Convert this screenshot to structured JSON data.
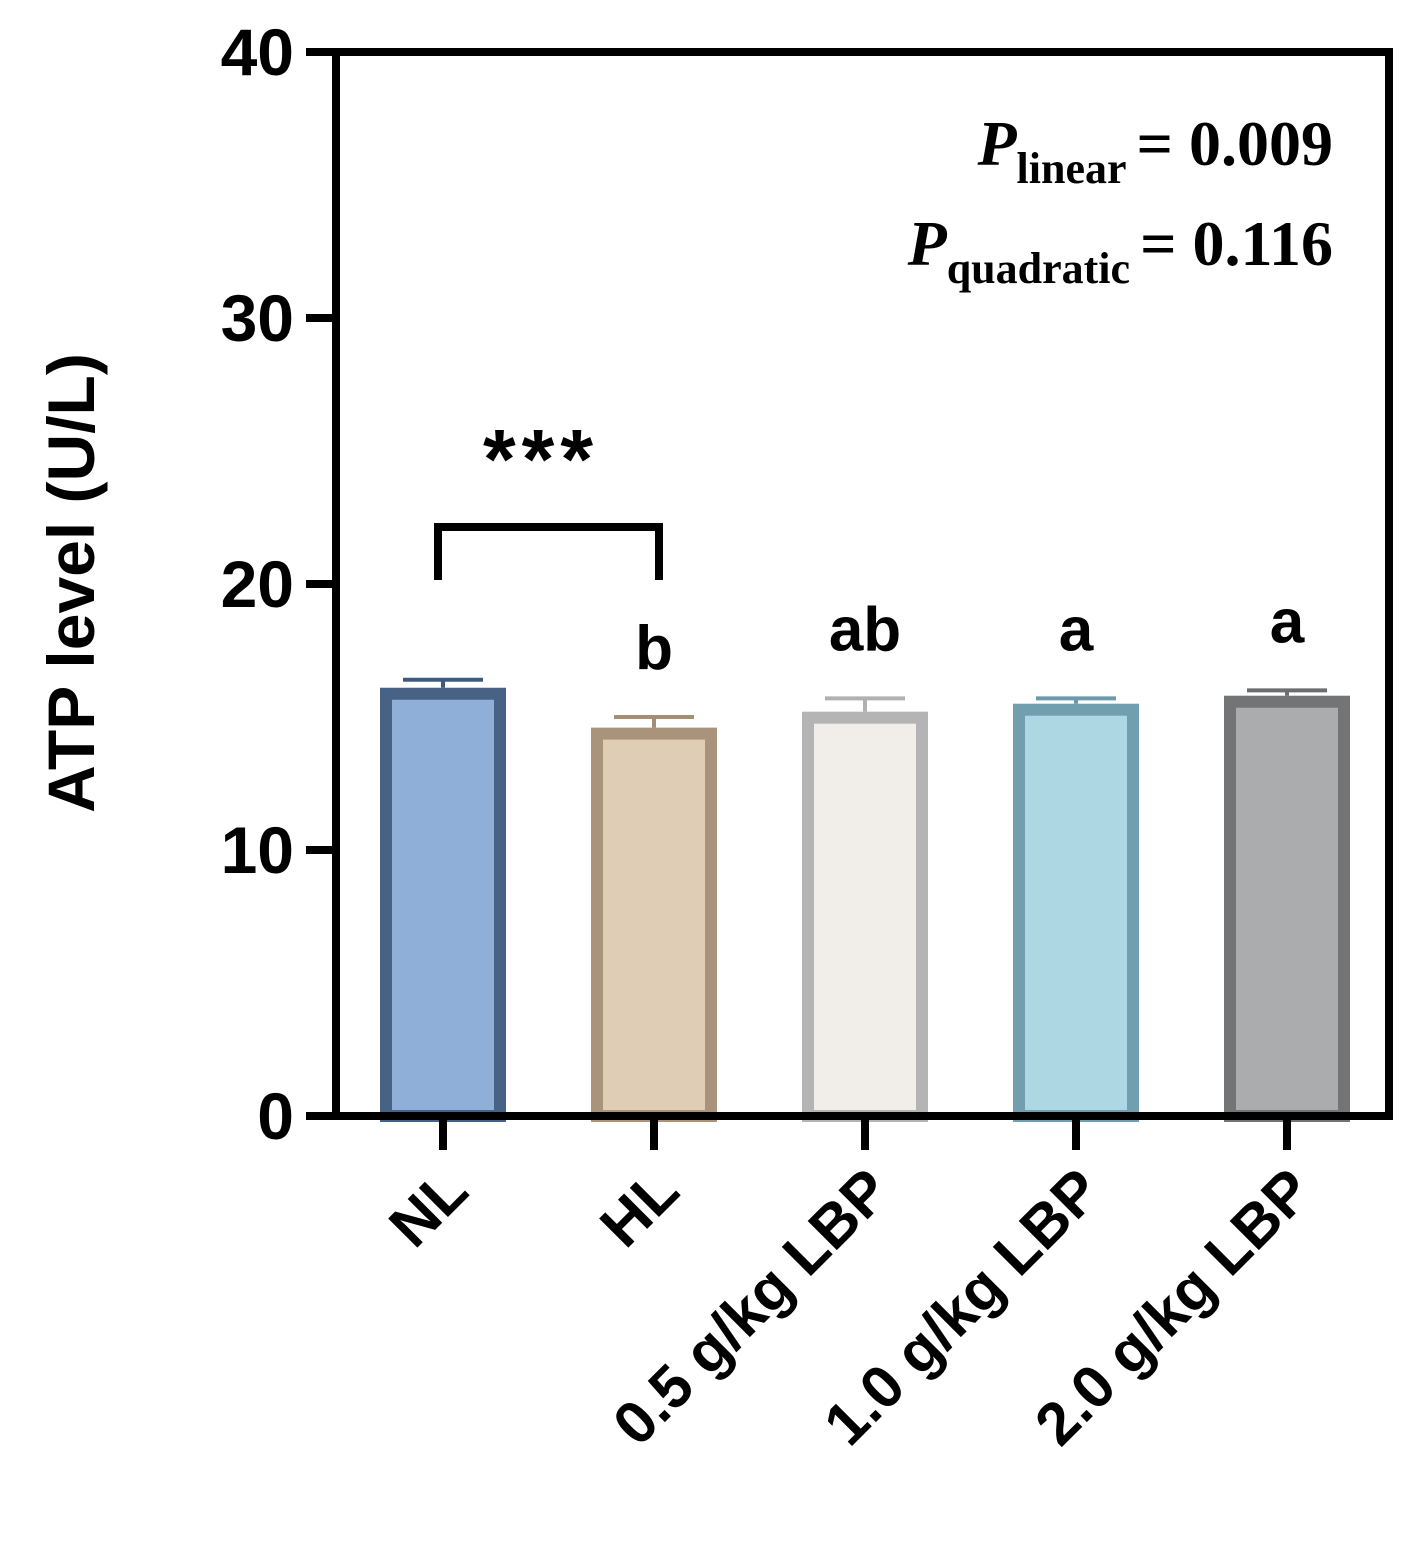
{
  "chart_data": {
    "type": "bar",
    "ylabel": "ATP level (U/L)",
    "xlabel": "",
    "ylim": [
      0,
      40
    ],
    "yticks": [
      0,
      10,
      20,
      30,
      40
    ],
    "categories": [
      "NL",
      "HL",
      "0.5 g/kg LBP",
      "1.0 g/kg LBP",
      "2.0 g/kg LBP"
    ],
    "values": [
      16.1,
      14.6,
      15.2,
      15.5,
      15.8
    ],
    "errors": [
      0.3,
      0.4,
      0.5,
      0.2,
      0.2
    ],
    "sig_letters": [
      "",
      "b",
      "ab",
      "a",
      "a"
    ],
    "bracket": {
      "from": "NL",
      "to": "HL",
      "label": "***"
    },
    "annotations": {
      "p_linear": {
        "symbol": "P",
        "sub": "linear",
        "text": "= 0.009"
      },
      "p_quadratic": {
        "symbol": "P",
        "sub": "quadratic",
        "text": "= 0.116"
      }
    },
    "colors": {
      "fill": [
        "#8aabd6",
        "#dfcbb3",
        "#f1eee9",
        "#a9d6e2",
        "#a6a8aa"
      ],
      "border": [
        "#3f5a80",
        "#a58e74",
        "#b1b1b1",
        "#6a9aab",
        "#6b6d6f"
      ]
    },
    "grid": false
  }
}
